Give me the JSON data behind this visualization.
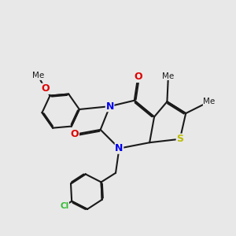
{
  "bg_color": "#e8e8e8",
  "bond_color": "#1a1a1a",
  "bond_lw": 1.5,
  "dbo": 0.06,
  "atom_colors": {
    "N": "#0000ee",
    "O": "#dd0000",
    "S": "#bbbb00",
    "Cl": "#33bb33"
  },
  "figsize": [
    3.0,
    3.0
  ],
  "dpi": 100,
  "xlim": [
    0,
    10
  ],
  "ylim": [
    0,
    10
  ]
}
